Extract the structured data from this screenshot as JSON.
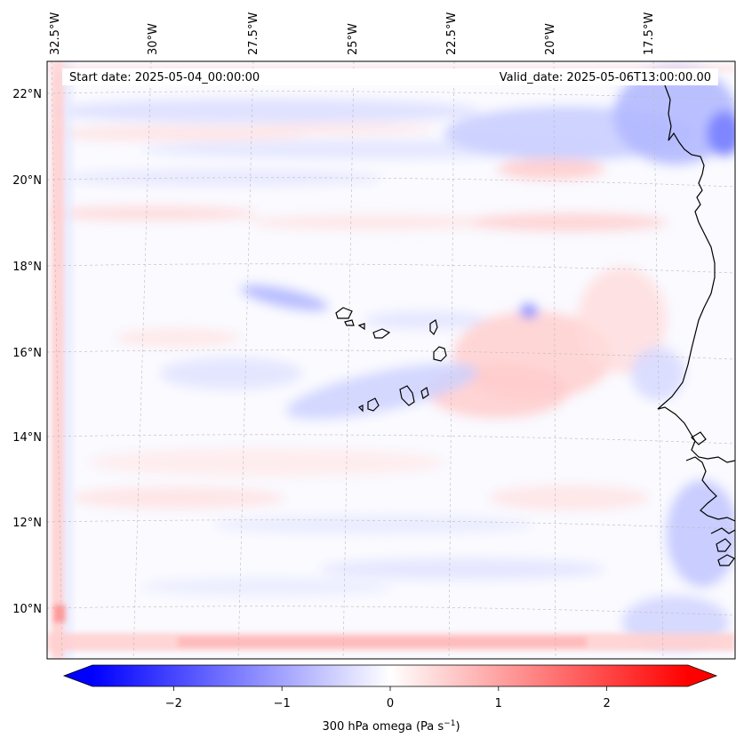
{
  "map": {
    "start_date": "Start date: 2025-05-04_00:00:00",
    "valid_date": "Valid_date: 2025-05-06T13:00:00.00",
    "extent": {
      "lon_min": -33.0,
      "lon_max": -15.3,
      "lat_min": 8.8,
      "lat_max": 22.8
    },
    "lon_ticks": [
      {
        "value": -32.5,
        "label": "32.5°W"
      },
      {
        "value": -30.0,
        "label": "30°W"
      },
      {
        "value": -27.5,
        "label": "27.5°W"
      },
      {
        "value": -25.0,
        "label": "25°W"
      },
      {
        "value": -22.5,
        "label": "22.5°W"
      },
      {
        "value": -20.0,
        "label": "20°W"
      },
      {
        "value": -17.5,
        "label": "17.5°W"
      }
    ],
    "lat_ticks": [
      {
        "value": 22,
        "label": "22°N"
      },
      {
        "value": 20,
        "label": "20°N"
      },
      {
        "value": 18,
        "label": "18°N"
      },
      {
        "value": 16,
        "label": "16°N"
      },
      {
        "value": 14,
        "label": "14°N"
      },
      {
        "value": 12,
        "label": "12°N"
      },
      {
        "value": 10,
        "label": "10°N"
      }
    ],
    "gridlines": true,
    "coastline_color": "#000000"
  },
  "colorbar": {
    "label_main": "300 hPa omega (Pa s",
    "label_sup": "−1",
    "label_end": ")",
    "vmin": -2.75,
    "vmax": 2.75,
    "ticks": [
      {
        "value": -2,
        "label": "−2"
      },
      {
        "value": -1,
        "label": "−1"
      },
      {
        "value": 0,
        "label": "0"
      },
      {
        "value": 1,
        "label": "1"
      },
      {
        "value": 2,
        "label": "2"
      }
    ],
    "cmap": "bwr",
    "color_low": "#0000ff",
    "color_mid": "#ffffff",
    "color_high": "#ff0000",
    "extend": "both"
  }
}
